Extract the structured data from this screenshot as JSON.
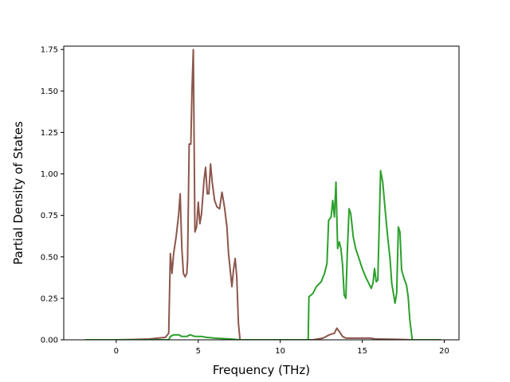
{
  "chart_data": {
    "type": "line",
    "title": "",
    "xlabel": "Frequency (THz)",
    "ylabel": "Partial Density of States",
    "xlim": [
      -3.2,
      20.9
    ],
    "ylim": [
      0,
      1.77
    ],
    "x_ticks": [
      0,
      5,
      10,
      15,
      20
    ],
    "y_ticks": [
      0.0,
      0.25,
      0.5,
      0.75,
      1.0,
      1.25,
      1.5,
      1.75
    ],
    "x_tick_labels": [
      "0",
      "5",
      "10",
      "15",
      "20"
    ],
    "y_tick_labels": [
      "0.00",
      "0.25",
      "0.50",
      "0.75",
      "1.00",
      "1.25",
      "1.50",
      "1.75"
    ],
    "grid": false,
    "legend": "none",
    "series": [
      {
        "color": "#8c564b",
        "points": [
          [
            -1.9,
            0.0
          ],
          [
            0.0,
            0.0
          ],
          [
            1.0,
            0.002
          ],
          [
            2.0,
            0.005
          ],
          [
            3.0,
            0.015
          ],
          [
            3.2,
            0.04
          ],
          [
            3.3,
            0.52
          ],
          [
            3.4,
            0.4
          ],
          [
            3.5,
            0.52
          ],
          [
            3.65,
            0.62
          ],
          [
            3.8,
            0.75
          ],
          [
            3.9,
            0.88
          ],
          [
            4.0,
            0.55
          ],
          [
            4.1,
            0.4
          ],
          [
            4.2,
            0.38
          ],
          [
            4.3,
            0.4
          ],
          [
            4.35,
            0.48
          ],
          [
            4.45,
            1.18
          ],
          [
            4.55,
            1.18
          ],
          [
            4.62,
            1.5
          ],
          [
            4.7,
            1.75
          ],
          [
            4.8,
            0.65
          ],
          [
            4.9,
            0.68
          ],
          [
            5.0,
            0.83
          ],
          [
            5.1,
            0.7
          ],
          [
            5.2,
            0.76
          ],
          [
            5.35,
            0.96
          ],
          [
            5.45,
            1.04
          ],
          [
            5.55,
            0.88
          ],
          [
            5.65,
            0.88
          ],
          [
            5.75,
            1.06
          ],
          [
            5.85,
            0.95
          ],
          [
            6.0,
            0.84
          ],
          [
            6.15,
            0.8
          ],
          [
            6.3,
            0.79
          ],
          [
            6.45,
            0.89
          ],
          [
            6.6,
            0.8
          ],
          [
            6.75,
            0.68
          ],
          [
            6.85,
            0.52
          ],
          [
            6.95,
            0.42
          ],
          [
            7.05,
            0.32
          ],
          [
            7.15,
            0.42
          ],
          [
            7.25,
            0.49
          ],
          [
            7.35,
            0.38
          ],
          [
            7.45,
            0.1
          ],
          [
            7.55,
            0.0
          ],
          [
            12.0,
            0.0
          ],
          [
            12.6,
            0.01
          ],
          [
            13.0,
            0.03
          ],
          [
            13.3,
            0.04
          ],
          [
            13.45,
            0.07
          ],
          [
            13.6,
            0.05
          ],
          [
            13.8,
            0.02
          ],
          [
            14.0,
            0.01
          ],
          [
            15.0,
            0.01
          ],
          [
            15.5,
            0.01
          ],
          [
            15.8,
            0.005
          ],
          [
            16.0,
            0.005
          ],
          [
            17.0,
            0.003
          ],
          [
            18.0,
            0.0
          ],
          [
            19.8,
            0.0
          ]
        ]
      },
      {
        "color": "#2ca02c",
        "points": [
          [
            -1.9,
            0.0
          ],
          [
            3.2,
            0.0
          ],
          [
            3.3,
            0.02
          ],
          [
            3.5,
            0.03
          ],
          [
            3.8,
            0.03
          ],
          [
            4.0,
            0.02
          ],
          [
            4.3,
            0.02
          ],
          [
            4.5,
            0.03
          ],
          [
            4.8,
            0.02
          ],
          [
            5.2,
            0.02
          ],
          [
            5.5,
            0.015
          ],
          [
            6.0,
            0.01
          ],
          [
            7.0,
            0.005
          ],
          [
            7.5,
            0.0
          ],
          [
            11.7,
            0.0
          ],
          [
            11.75,
            0.26
          ],
          [
            12.0,
            0.28
          ],
          [
            12.2,
            0.32
          ],
          [
            12.5,
            0.35
          ],
          [
            12.7,
            0.4
          ],
          [
            12.85,
            0.46
          ],
          [
            12.95,
            0.72
          ],
          [
            13.1,
            0.74
          ],
          [
            13.2,
            0.84
          ],
          [
            13.3,
            0.74
          ],
          [
            13.4,
            0.95
          ],
          [
            13.5,
            0.55
          ],
          [
            13.6,
            0.59
          ],
          [
            13.7,
            0.55
          ],
          [
            13.8,
            0.45
          ],
          [
            13.9,
            0.27
          ],
          [
            14.0,
            0.25
          ],
          [
            14.1,
            0.55
          ],
          [
            14.2,
            0.79
          ],
          [
            14.3,
            0.76
          ],
          [
            14.45,
            0.62
          ],
          [
            14.6,
            0.55
          ],
          [
            14.8,
            0.49
          ],
          [
            15.0,
            0.43
          ],
          [
            15.2,
            0.38
          ],
          [
            15.4,
            0.34
          ],
          [
            15.55,
            0.31
          ],
          [
            15.65,
            0.34
          ],
          [
            15.75,
            0.43
          ],
          [
            15.85,
            0.35
          ],
          [
            15.95,
            0.36
          ],
          [
            16.05,
            0.75
          ],
          [
            16.12,
            1.02
          ],
          [
            16.25,
            0.95
          ],
          [
            16.4,
            0.78
          ],
          [
            16.55,
            0.62
          ],
          [
            16.7,
            0.48
          ],
          [
            16.8,
            0.34
          ],
          [
            16.9,
            0.28
          ],
          [
            17.0,
            0.22
          ],
          [
            17.1,
            0.28
          ],
          [
            17.2,
            0.68
          ],
          [
            17.3,
            0.65
          ],
          [
            17.4,
            0.42
          ],
          [
            17.55,
            0.37
          ],
          [
            17.7,
            0.33
          ],
          [
            17.8,
            0.26
          ],
          [
            17.9,
            0.12
          ],
          [
            18.0,
            0.04
          ],
          [
            18.05,
            0.0
          ],
          [
            19.8,
            0.0
          ]
        ]
      }
    ]
  }
}
